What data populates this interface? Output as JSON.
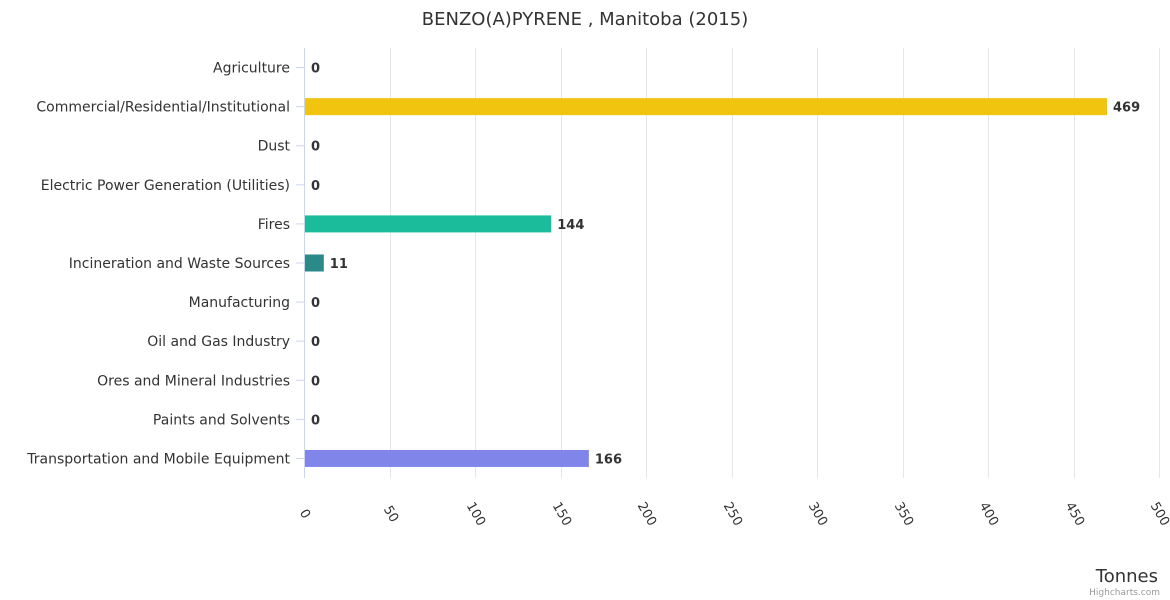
{
  "chart_data": {
    "type": "bar",
    "orientation": "horizontal",
    "title": "BENZO(A)PYRENE , Manitoba (2015)",
    "xlabel": "Tonnes",
    "ylabel": "",
    "xlim": [
      0,
      500
    ],
    "ticks": [
      "0",
      "50",
      "100",
      "150",
      "200",
      "250",
      "300",
      "350",
      "400",
      "450",
      "500"
    ],
    "grid": true,
    "categories": [
      "Agriculture",
      "Commercial/Residential/Institutional",
      "Dust",
      "Electric Power Generation (Utilities)",
      "Fires",
      "Incineration and Waste Sources",
      "Manufacturing",
      "Oil and Gas Industry",
      "Ores and Mineral Industries",
      "Paints and Solvents",
      "Transportation and Mobile Equipment"
    ],
    "values": [
      0,
      469,
      0,
      0,
      144,
      11,
      0,
      0,
      0,
      0,
      166
    ],
    "colors": [
      "#bcbcbc",
      "#f1c40f",
      "#bcbcbc",
      "#bcbcbc",
      "#1abc9c",
      "#2a8a87",
      "#bcbcbc",
      "#bcbcbc",
      "#bcbcbc",
      "#bcbcbc",
      "#8085e9"
    ]
  },
  "credits": "Highcharts.com"
}
